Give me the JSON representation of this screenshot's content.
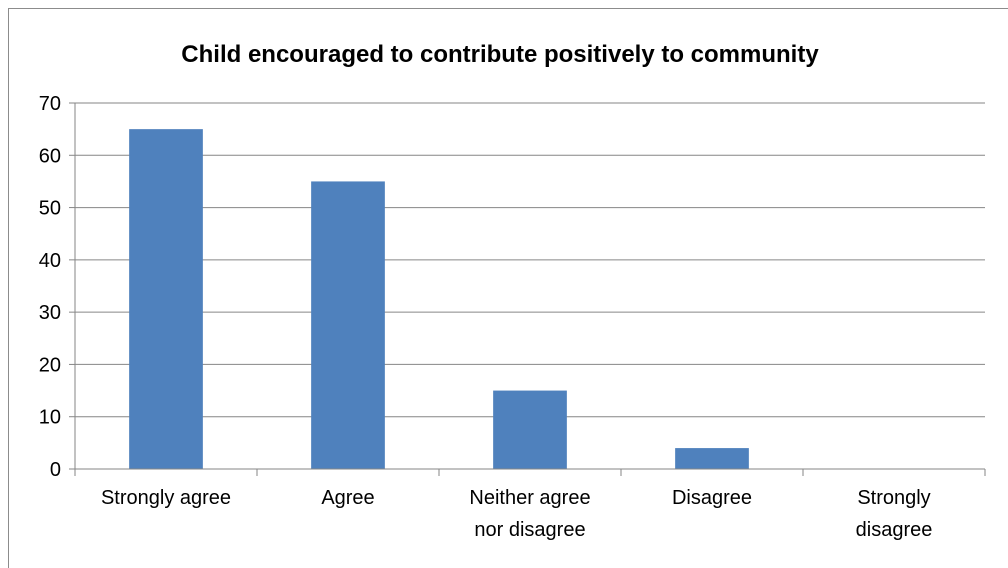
{
  "chart_data": {
    "type": "bar",
    "title": "Child encouraged to contribute positively to community",
    "categories": [
      "Strongly agree",
      "Agree",
      "Neither agree nor disagree",
      "Disagree",
      "Strongly disagree"
    ],
    "category_label_lines": [
      [
        "Strongly agree"
      ],
      [
        "Agree"
      ],
      [
        "Neither agree",
        "nor disagree"
      ],
      [
        "Disagree"
      ],
      [
        "Strongly",
        "disagree"
      ]
    ],
    "values": [
      65,
      55,
      15,
      4,
      0
    ],
    "ylim": [
      0,
      70
    ],
    "yticks": [
      0,
      10,
      20,
      30,
      40,
      50,
      60,
      70
    ],
    "xlabel": "",
    "ylabel": "",
    "grid": true,
    "legend": "none",
    "bar_color": "#4f81bd"
  }
}
